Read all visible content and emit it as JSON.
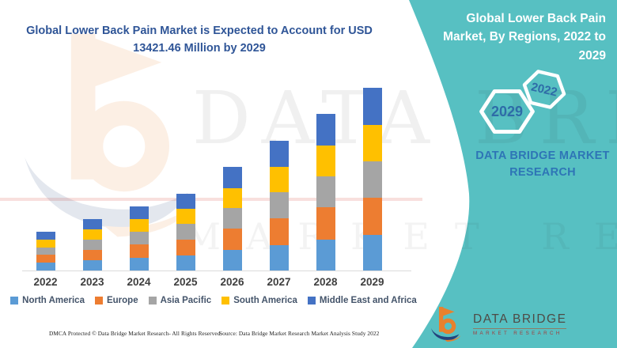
{
  "main_title": {
    "text": "Global Lower Back Pain Market is Expected to Account for USD 13421.46 Million by 2029",
    "color": "#2F5597"
  },
  "side_panel": {
    "title": "Global Lower Back Pain Market, By Regions, 2022 to 2029",
    "accent_color": "#57C0C2",
    "badges": [
      {
        "year": "2029"
      },
      {
        "year": "2022"
      }
    ],
    "brand_text": "DATA BRIDGE MARKET RESEARCH",
    "brand_text_color": "#2E75B6"
  },
  "chart_data": {
    "type": "bar",
    "subtype": "stacked-vertical",
    "title": "Global Lower Back Pain Market is Expected to Account for USD 13421.46 Million by 2029",
    "unit": "USD Million",
    "categories": [
      "2022",
      "2023",
      "2024",
      "2025",
      "2026",
      "2027",
      "2028",
      "2029"
    ],
    "series": [
      {
        "name": "North America",
        "color": "#5B9BD5",
        "values": [
          560,
          745,
          930,
          1120,
          1500,
          1880,
          2265,
          2590
        ]
      },
      {
        "name": "Europe",
        "color": "#ED7D31",
        "values": [
          580,
          775,
          970,
          1160,
          1560,
          1960,
          2360,
          2765
        ]
      },
      {
        "name": "Asia Pacific",
        "color": "#A5A5A5",
        "values": [
          560,
          750,
          940,
          1125,
          1510,
          1900,
          2285,
          2650
        ]
      },
      {
        "name": "South America",
        "color": "#FFC000",
        "values": [
          555,
          745,
          930,
          1120,
          1500,
          1880,
          2265,
          2710
        ]
      },
      {
        "name": "Middle East and Africa",
        "color": "#4472C4",
        "values": [
          571,
          753,
          940,
          1126,
          1524,
          1917,
          2305,
          2706.46
        ]
      }
    ],
    "totals": [
      2826,
      3768,
      4710,
      5651,
      7594,
      9537,
      11480,
      13421.46
    ],
    "highlight_value_2029": 13421.46,
    "xlabel": "",
    "ylabel": "",
    "y_axis_shown": false,
    "grid": false,
    "legend_position": "bottom",
    "values_are_estimated_from_pixels": true
  },
  "footer": {
    "dmca": "DMCA Protected © Data Bridge Market Research- All Rights Reserved.",
    "source": "Source: Data Bridge Market Research Market Analysis Study 2022"
  },
  "logo": {
    "name": "DATA BRIDGE",
    "sub": "MARKET RESEARCH",
    "orange": "#E8812D",
    "navy": "#24437C"
  },
  "watermark": {
    "line1": "DATA BRIDGE",
    "line2": "MARKET RESEARCH"
  }
}
